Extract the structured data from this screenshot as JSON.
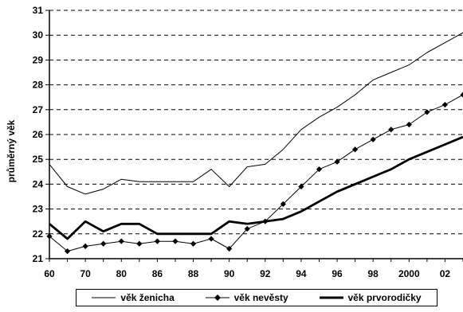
{
  "chart_data": {
    "type": "line",
    "title": "",
    "xlabel": "",
    "ylabel": "průměrný věk",
    "ylim": [
      21,
      31
    ],
    "y_ticks": [
      21,
      22,
      23,
      24,
      25,
      26,
      27,
      28,
      29,
      30,
      31
    ],
    "x": [
      1960,
      1965,
      1970,
      1975,
      1980,
      1985,
      1986,
      1987,
      1988,
      1989,
      1990,
      1991,
      1992,
      1993,
      1994,
      1995,
      1996,
      1997,
      1998,
      1999,
      2000,
      2001,
      2002,
      2003
    ],
    "x_ticks": [
      {
        "label": "60",
        "index": 0
      },
      {
        "label": "70",
        "index": 2
      },
      {
        "label": "80",
        "index": 4
      },
      {
        "label": "86",
        "index": 6
      },
      {
        "label": "88",
        "index": 8
      },
      {
        "label": "90",
        "index": 10
      },
      {
        "label": "92",
        "index": 12
      },
      {
        "label": "94",
        "index": 14
      },
      {
        "label": "96",
        "index": 16
      },
      {
        "label": "98",
        "index": 18
      },
      {
        "label": "2000",
        "index": 20
      },
      {
        "label": "02",
        "index": 22
      }
    ],
    "grid": "horizontal dashed",
    "legend_position": "bottom",
    "series": [
      {
        "name": "věk ženicha",
        "style": "thin",
        "color": "#000000",
        "values": [
          24.8,
          23.9,
          23.6,
          23.8,
          24.2,
          24.1,
          24.1,
          24.1,
          24.1,
          24.6,
          23.9,
          24.7,
          24.8,
          25.4,
          26.2,
          26.7,
          27.1,
          27.6,
          28.2,
          28.5,
          28.8,
          29.3,
          29.7,
          30.1
        ]
      },
      {
        "name": "věk nevěsty",
        "style": "markers",
        "color": "#000000",
        "values": [
          21.9,
          21.3,
          21.5,
          21.6,
          21.7,
          21.6,
          21.7,
          21.7,
          21.6,
          21.8,
          21.4,
          22.2,
          22.5,
          23.2,
          23.9,
          24.6,
          24.9,
          25.4,
          25.8,
          26.2,
          26.4,
          26.9,
          27.2,
          27.6
        ]
      },
      {
        "name": "věk prvorodičky",
        "style": "thick",
        "color": "#000000",
        "values": [
          22.4,
          21.8,
          22.5,
          22.1,
          22.4,
          22.4,
          22.0,
          22.0,
          22.0,
          22.0,
          22.5,
          22.4,
          22.5,
          22.6,
          22.9,
          23.3,
          23.7,
          24.0,
          24.3,
          24.6,
          25.0,
          25.3,
          25.6,
          25.9
        ]
      }
    ]
  }
}
